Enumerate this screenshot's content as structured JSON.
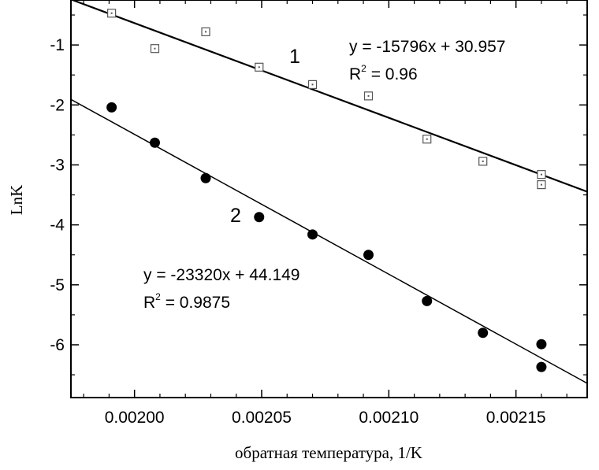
{
  "chart_data": {
    "type": "scatter",
    "xlabel": "обратная температура, 1/K",
    "ylabel": "LnK",
    "xlim": [
      0.001975,
      0.002178
    ],
    "ylim": [
      -6.88,
      -0.25
    ],
    "xticks": [
      {
        "value": 0.002,
        "label": "0.00200"
      },
      {
        "value": 0.00205,
        "label": "0.00205"
      },
      {
        "value": 0.0021,
        "label": "0.00210"
      },
      {
        "value": 0.00215,
        "label": "0.00215"
      }
    ],
    "yticks": [
      {
        "value": -1,
        "label": "-1"
      },
      {
        "value": -2,
        "label": "-2"
      },
      {
        "value": -3,
        "label": "-3"
      },
      {
        "value": -4,
        "label": "-4"
      },
      {
        "value": -5,
        "label": "-5"
      },
      {
        "value": -6,
        "label": "-6"
      }
    ],
    "series": [
      {
        "name": "1",
        "marker": "open-square",
        "color": "#555555",
        "points": [
          {
            "x": 0.001991,
            "y": -0.47
          },
          {
            "x": 0.002008,
            "y": -1.06
          },
          {
            "x": 0.002028,
            "y": -0.78
          },
          {
            "x": 0.002049,
            "y": -1.37
          },
          {
            "x": 0.00207,
            "y": -1.66
          },
          {
            "x": 0.002092,
            "y": -1.85
          },
          {
            "x": 0.002115,
            "y": -2.57
          },
          {
            "x": 0.002137,
            "y": -2.94
          },
          {
            "x": 0.00216,
            "y": -3.16
          },
          {
            "x": 0.00216,
            "y": -3.33
          }
        ],
        "trendline": {
          "slope": -15796,
          "intercept": 30.957,
          "x_range": [
            0.001975,
            0.002178
          ],
          "stroke_width": 2.2
        },
        "equation": "y = -15796x + 30.957",
        "r2_prefix": "R",
        "r2_sup": "2",
        "r2_value": " = 0.96"
      },
      {
        "name": "2",
        "marker": "filled-circle",
        "color": "#000000",
        "points": [
          {
            "x": 0.001991,
            "y": -2.04
          },
          {
            "x": 0.002008,
            "y": -2.63
          },
          {
            "x": 0.002028,
            "y": -3.22
          },
          {
            "x": 0.002049,
            "y": -3.87
          },
          {
            "x": 0.00207,
            "y": -4.16
          },
          {
            "x": 0.002092,
            "y": -4.5
          },
          {
            "x": 0.002115,
            "y": -5.27
          },
          {
            "x": 0.002137,
            "y": -5.8
          },
          {
            "x": 0.00216,
            "y": -5.99
          },
          {
            "x": 0.00216,
            "y": -6.37
          }
        ],
        "trendline": {
          "slope": -23320,
          "intercept": 44.149,
          "x_range": [
            0.001975,
            0.002178
          ],
          "stroke_width": 1.5
        },
        "equation": "y = -23320x + 44.149",
        "r2_prefix": "R",
        "r2_sup": "2",
        "r2_value": " = 0.9875"
      }
    ]
  }
}
